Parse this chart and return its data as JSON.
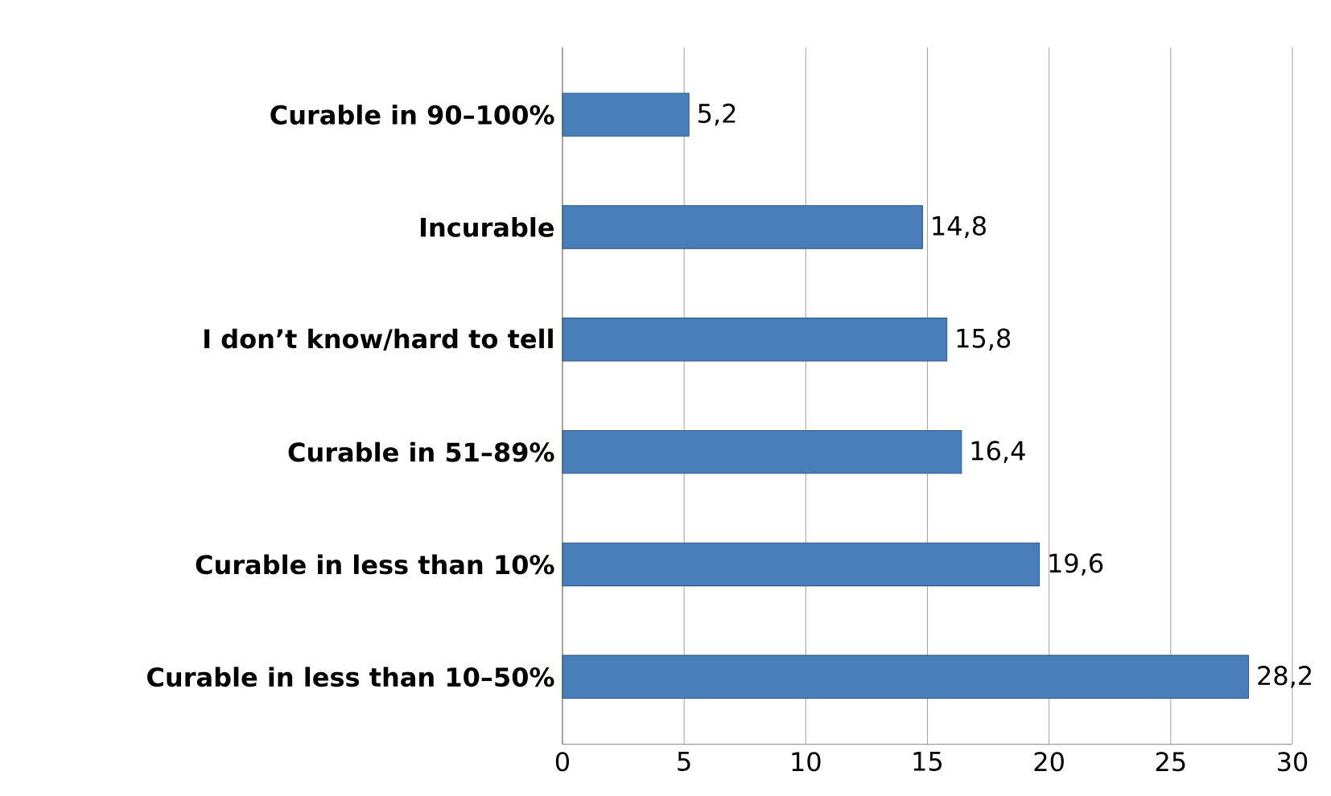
{
  "chart_data": {
    "type": "bar",
    "orientation": "horizontal",
    "categories": [
      "Curable in 90–100%",
      "Incurable",
      "I don’t know/hard to tell",
      "Curable in 51–89%",
      "Curable in less than 10%",
      "Curable in less than 10–50%"
    ],
    "values": [
      5.2,
      14.8,
      15.8,
      16.4,
      19.6,
      28.2
    ],
    "value_labels": [
      "5,2",
      "14,8",
      "15,8",
      "16,4",
      "19,6",
      "28,2"
    ],
    "color": "#4a7ebb",
    "xlim": [
      0,
      30
    ],
    "xticks": [
      0,
      5,
      10,
      15,
      20,
      25,
      30
    ],
    "grid": "x"
  }
}
